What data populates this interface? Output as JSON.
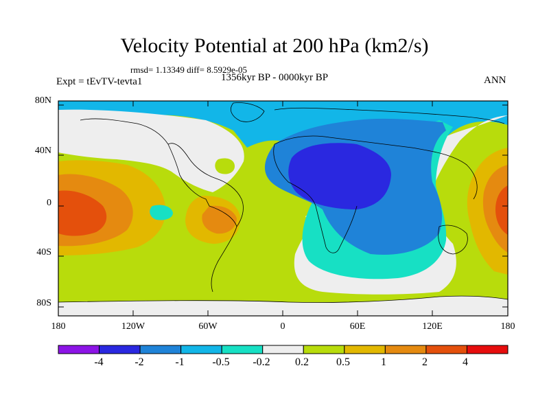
{
  "title": "Velocity Potential at 200 hPa (km2/s)",
  "stats": "rmsd= 1.13349  diff= 8.5929e-05",
  "period": "1356kyr BP - 0000kyr BP",
  "experiment": "Expt = tEvTV-tevta1",
  "season": "ANN",
  "lat_labels": [
    "80N",
    "40N",
    "0",
    "40S",
    "80S"
  ],
  "lon_labels": [
    "180",
    "120W",
    "60W",
    "0",
    "60E",
    "120E",
    "180"
  ],
  "colorbar": {
    "labels": [
      "-4",
      "-2",
      "-1",
      "-0.5",
      "-0.2",
      "0.2",
      "0.5",
      "1",
      "2",
      "4"
    ],
    "colors": [
      "#8c14e6",
      "#2a28e0",
      "#1f83d8",
      "#12b6e8",
      "#17e0c4",
      "#eeeeee",
      "#b8dc0c",
      "#e2b800",
      "#e58a10",
      "#e4500c",
      "#e60d0d"
    ]
  },
  "field_colors": {
    "neg_strong": "#2a28e0",
    "neg_mid": "#1f83d8",
    "neg_low": "#12b6e8",
    "neg_weak": "#17e0c4",
    "neutral": "#eeeeee",
    "pos_weak": "#b8dc0c",
    "pos_low": "#e2b800",
    "pos_mid": "#e58a10",
    "pos_strong": "#e4500c"
  }
}
